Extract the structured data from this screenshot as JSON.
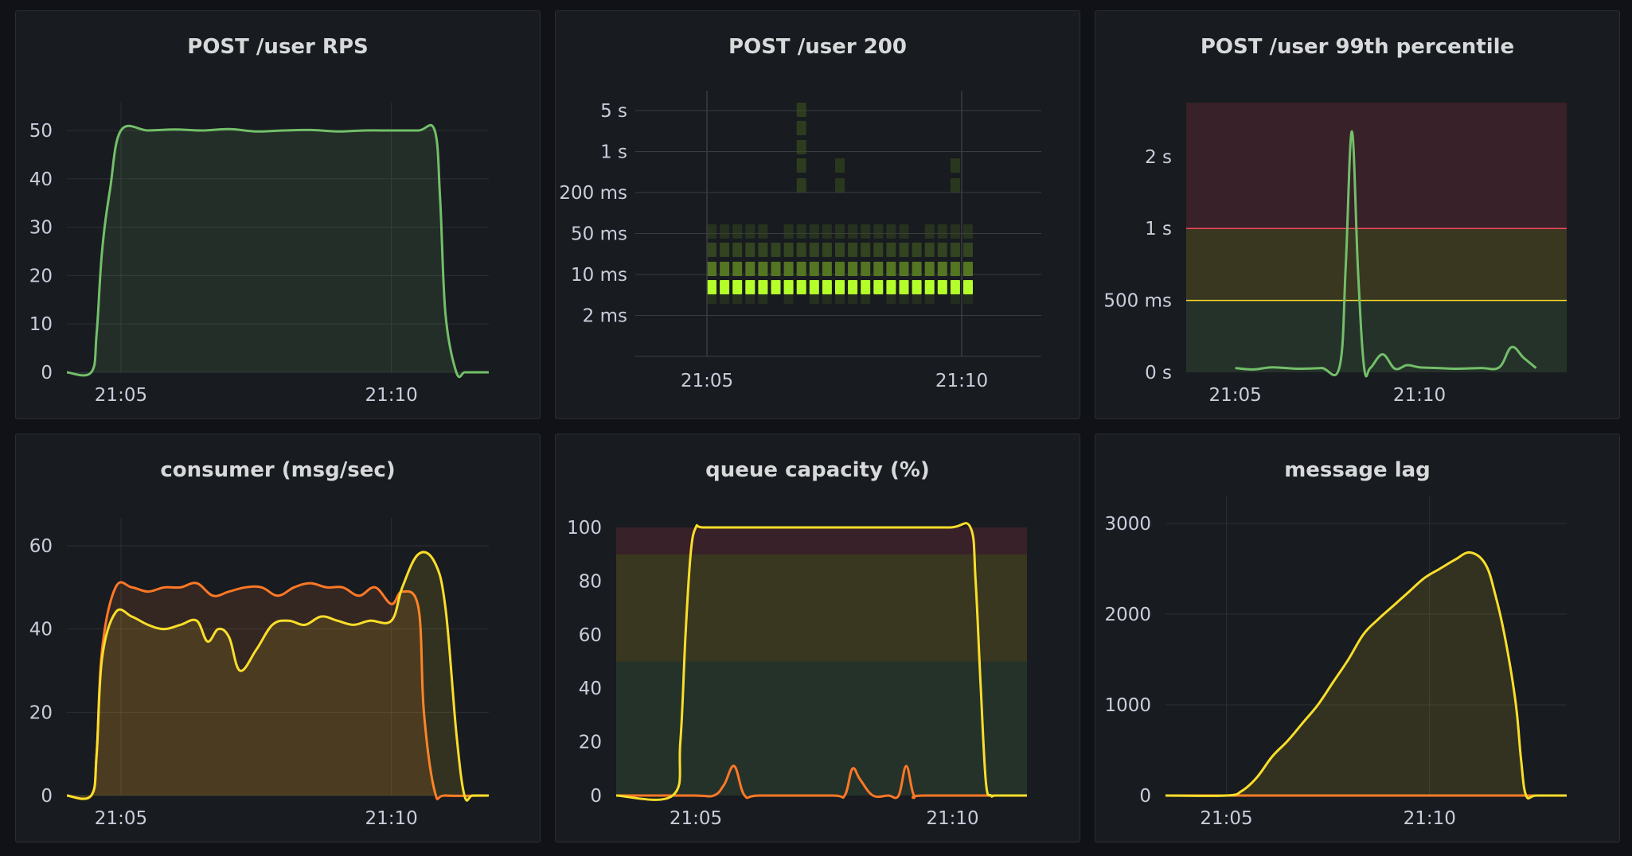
{
  "chart_data": [
    {
      "id": "rps",
      "type": "area",
      "title": "POST /user RPS",
      "x_ticks": [
        "21:05",
        "21:10"
      ],
      "y_ticks": [
        "0",
        "10",
        "20",
        "30",
        "40",
        "50"
      ],
      "ylim": [
        0,
        50
      ],
      "series": [
        {
          "color": "#73bf69",
          "x": [
            0,
            0.45,
            0.55,
            0.65,
            0.8,
            1.0,
            1.5,
            2.0,
            2.5,
            3.0,
            3.5,
            4.0,
            4.5,
            5.0,
            5.5,
            6.0,
            6.5,
            6.8,
            6.9,
            7.0,
            7.2,
            7.35,
            7.5,
            7.8
          ],
          "values": [
            0,
            0,
            8,
            25,
            38,
            50,
            50,
            50.2,
            50,
            50.3,
            49.8,
            50,
            50.1,
            49.8,
            50,
            50,
            50,
            50,
            36,
            12,
            0,
            0,
            0,
            0
          ]
        }
      ]
    },
    {
      "id": "heatmap",
      "type": "heatmap",
      "title": "POST /user 200",
      "x_ticks": [
        "21:05",
        "21:10"
      ],
      "y_ticks": [
        "5 s",
        "1 s",
        "200 ms",
        "50 ms",
        "10 ms",
        "2 ms"
      ],
      "color_low": "#2b3a1f",
      "color_high": "#b4ff2a",
      "columns": 21,
      "rows": [
        [
          0.06,
          0.05,
          0.06,
          0.05,
          0.06,
          0,
          0.05,
          0,
          0.06,
          0.04,
          0.05,
          0.05,
          0.06,
          0,
          0.05,
          0.04,
          0.05,
          0.05,
          0,
          0.04,
          0.04
        ],
        [
          1,
          1,
          1,
          1,
          1,
          1,
          1,
          1,
          1,
          1,
          1,
          1,
          1,
          1,
          1,
          1,
          1,
          1,
          1,
          1,
          1
        ],
        [
          0.3,
          0.3,
          0.3,
          0.3,
          0.3,
          0.3,
          0.3,
          0.3,
          0.3,
          0.3,
          0.3,
          0.3,
          0.3,
          0.3,
          0.3,
          0.3,
          0.3,
          0.3,
          0.3,
          0.3,
          0.3
        ],
        [
          0.15,
          0.15,
          0.15,
          0.15,
          0.15,
          0.15,
          0.15,
          0.15,
          0.15,
          0.15,
          0.15,
          0.15,
          0.15,
          0.15,
          0.15,
          0.15,
          0.15,
          0.15,
          0.15,
          0.15,
          0.15
        ],
        [
          0.08,
          0.07,
          0.08,
          0.07,
          0.08,
          0,
          0.08,
          0.08,
          0.08,
          0.07,
          0.08,
          0.07,
          0.08,
          0.08,
          0.08,
          0.07,
          0,
          0.08,
          0.08,
          0.07,
          0.08
        ],
        [
          0,
          0,
          0,
          0,
          0,
          0,
          0,
          0.12,
          0,
          0,
          0.1,
          0,
          0,
          0,
          0,
          0,
          0,
          0,
          0,
          0.1,
          0
        ],
        [
          0,
          0,
          0,
          0,
          0,
          0,
          0,
          0.12,
          0,
          0,
          0.1,
          0,
          0,
          0,
          0,
          0,
          0,
          0,
          0,
          0.1,
          0
        ],
        [
          0,
          0,
          0,
          0,
          0,
          0,
          0,
          0.12,
          0,
          0,
          0,
          0,
          0,
          0,
          0,
          0,
          0,
          0,
          0,
          0,
          0
        ],
        [
          0,
          0,
          0,
          0,
          0,
          0,
          0,
          0.12,
          0,
          0,
          0,
          0,
          0,
          0,
          0,
          0,
          0,
          0,
          0,
          0,
          0
        ],
        [
          0,
          0,
          0,
          0,
          0,
          0,
          0,
          0.12,
          0,
          0,
          0,
          0,
          0,
          0,
          0,
          0,
          0,
          0,
          0,
          0,
          0
        ]
      ]
    },
    {
      "id": "p99",
      "type": "line",
      "title": "POST /user 99th percentile",
      "x_ticks": [
        "21:05",
        "21:10"
      ],
      "y_ticks": [
        "0 s",
        "500 ms",
        "1 s",
        "2 s"
      ],
      "thresholds": [
        {
          "color": "#73bf69",
          "from": 0,
          "to": 1
        },
        {
          "color": "#fade2a",
          "from": 1,
          "to": 2
        },
        {
          "color": "#f2495c",
          "from": 2,
          "to": 3.75
        }
      ],
      "series": [
        {
          "color": "#73bf69",
          "x": [
            0,
            0.3,
            0.6,
            1.0,
            1.4,
            1.7,
            1.8,
            1.9,
            2.0,
            2.1,
            2.2,
            2.4,
            2.6,
            2.8,
            3.0,
            3.3,
            3.6,
            4.0,
            4.3,
            4.5,
            4.7,
            4.9
          ],
          "values": [
            0.06,
            0.04,
            0.07,
            0.05,
            0.06,
            0.08,
            1.5,
            3.35,
            1.4,
            0.06,
            0.06,
            0.25,
            0.05,
            0.1,
            0.07,
            0.06,
            0.05,
            0.06,
            0.07,
            0.35,
            0.2,
            0.06
          ]
        }
      ]
    },
    {
      "id": "consumer",
      "type": "area",
      "title": "consumer (msg/sec)",
      "x_ticks": [
        "21:05",
        "21:10"
      ],
      "y_ticks": [
        "0",
        "20",
        "40",
        "60"
      ],
      "ylim": [
        0,
        60
      ],
      "series": [
        {
          "color": "#ff7826",
          "x": [
            0,
            0.45,
            0.55,
            0.65,
            0.9,
            1.2,
            1.5,
            1.8,
            2.1,
            2.4,
            2.7,
            3.0,
            3.3,
            3.6,
            3.9,
            4.2,
            4.5,
            4.8,
            5.1,
            5.4,
            5.7,
            6.0,
            6.2,
            6.5,
            6.6,
            6.8,
            7.0,
            7.8
          ],
          "values": [
            0,
            0,
            10,
            35,
            50,
            50,
            49,
            50,
            50,
            51,
            48,
            49,
            50,
            50,
            48,
            50,
            51,
            50,
            50,
            48,
            50,
            46,
            49,
            45,
            20,
            1,
            0,
            0
          ]
        },
        {
          "color": "#fade2a",
          "x": [
            0,
            0.45,
            0.55,
            0.65,
            0.9,
            1.2,
            1.5,
            1.8,
            2.1,
            2.4,
            2.6,
            2.8,
            3.0,
            3.2,
            3.5,
            3.8,
            4.1,
            4.4,
            4.7,
            5.0,
            5.3,
            5.6,
            6.0,
            6.2,
            6.5,
            6.8,
            7.0,
            7.2,
            7.35,
            7.5,
            7.8
          ],
          "values": [
            0,
            0,
            10,
            33,
            44,
            43,
            41,
            40,
            41,
            42,
            37,
            40,
            38,
            30,
            35,
            41,
            42,
            41,
            43,
            42,
            41,
            42,
            42,
            50,
            58,
            56,
            45,
            15,
            0,
            0,
            0
          ]
        }
      ]
    },
    {
      "id": "queue",
      "type": "line",
      "title": "queue capacity (%)",
      "x_ticks": [
        "21:05",
        "21:10"
      ],
      "y_ticks": [
        "0",
        "20",
        "40",
        "60",
        "80",
        "100"
      ],
      "ylim": [
        0,
        100
      ],
      "thresholds": [
        {
          "color": "#73bf69",
          "from": 0,
          "to": 50
        },
        {
          "color": "#fade2a",
          "from": 50,
          "to": 90
        },
        {
          "color": "#f2495c",
          "from": 90,
          "to": 100
        }
      ],
      "series": [
        {
          "color": "#ff7826",
          "x": [
            0,
            1.5,
            1.9,
            2.1,
            2.3,
            2.5,
            2.8,
            4.2,
            4.45,
            4.6,
            4.75,
            5.0,
            5.3,
            5.5,
            5.65,
            5.8,
            6.0,
            8.0
          ],
          "values": [
            0,
            0,
            0,
            4,
            11,
            0,
            0,
            0,
            0,
            10,
            6,
            0,
            0,
            0,
            11,
            0,
            0,
            0
          ]
        },
        {
          "color": "#fade2a",
          "x": [
            0,
            1.1,
            1.25,
            1.35,
            1.45,
            1.55,
            1.7,
            2.5,
            3.5,
            4.5,
            5.5,
            6.5,
            6.9,
            7.0,
            7.1,
            7.2,
            7.3,
            7.4,
            8.0
          ],
          "values": [
            0,
            0,
            20,
            60,
            90,
            100,
            100,
            100,
            100,
            100,
            100,
            100,
            100,
            80,
            40,
            5,
            0,
            0,
            0
          ]
        }
      ]
    },
    {
      "id": "lag",
      "type": "area",
      "title": "message lag",
      "x_ticks": [
        "21:05",
        "21:10"
      ],
      "y_ticks": [
        "0",
        "1000",
        "2000",
        "3000"
      ],
      "ylim": [
        0,
        3000
      ],
      "series": [
        {
          "color": "#ff7826",
          "x": [
            0,
            7.9
          ],
          "values": [
            0,
            0
          ]
        },
        {
          "color": "#fade2a",
          "x": [
            0,
            1.2,
            1.5,
            1.8,
            2.1,
            2.4,
            2.7,
            3.0,
            3.3,
            3.6,
            3.9,
            4.2,
            4.5,
            4.8,
            5.1,
            5.4,
            5.7,
            6.0,
            6.3,
            6.5,
            6.7,
            6.9,
            7.0,
            7.1,
            7.3,
            7.9
          ],
          "values": [
            0,
            0,
            50,
            200,
            430,
            600,
            800,
            1000,
            1250,
            1500,
            1780,
            1950,
            2100,
            2250,
            2400,
            2500,
            2600,
            2680,
            2550,
            2200,
            1700,
            1000,
            400,
            0,
            0,
            0
          ]
        }
      ]
    }
  ]
}
